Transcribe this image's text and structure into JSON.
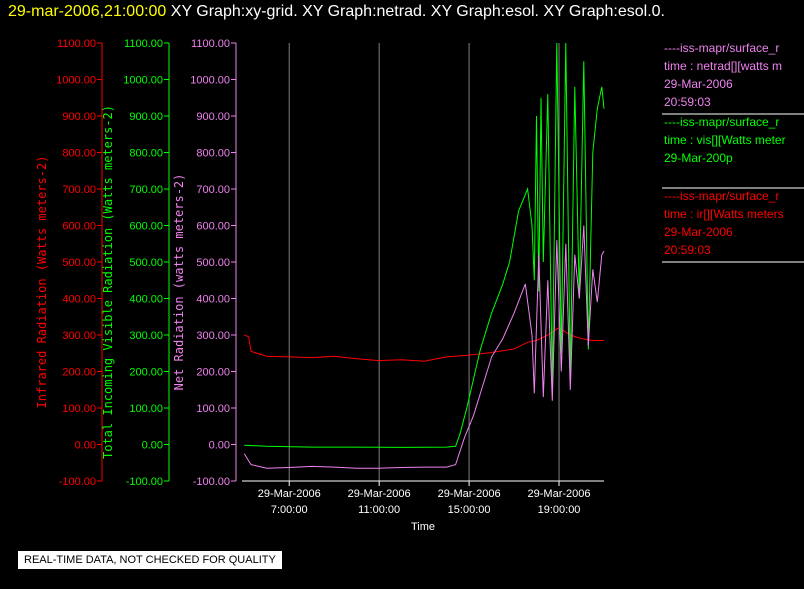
{
  "header": {
    "time": "29-mar-2006,21:00:00",
    "graphs": "XY Graph:xy-grid.  XY Graph:netrad.  XY Graph:esol.  XY Graph:esol.0."
  },
  "footer": {
    "qc_notice": "REAL-TIME DATA, NOT CHECKED FOR QUALITY"
  },
  "colors": {
    "infrared": "#ff0000",
    "visible": "#00ff00",
    "net": "#ee82ee",
    "grid": "#808080",
    "axis": "#ffffff"
  },
  "legend": [
    {
      "line1": "----iss-mapr/surface_r",
      "line2": "time : netrad[][watts m",
      "line3": "29-Mar-2006",
      "line4": "20:59:03",
      "color": "#ee82ee"
    },
    {
      "line1": "----iss-mapr/surface_r",
      "line2": "time : vis[][Watts meter",
      "line3": "29-Mar-200p",
      "line4": "",
      "color": "#00ff00"
    },
    {
      "line1": "----iss-mapr/surface_r",
      "line2": "time : ir[][Watts meters",
      "line3": "29-Mar-2006",
      "line4": "20:59:03",
      "color": "#ff0000"
    }
  ],
  "chart_data": {
    "type": "line",
    "title": "",
    "xlabel": "Time",
    "x_ticks": [
      {
        "top": "29-Mar-2006",
        "bottom": "7:00:00",
        "hour": 7
      },
      {
        "top": "29-Mar-2006",
        "bottom": "11:00:00",
        "hour": 11
      },
      {
        "top": "29-Mar-2006",
        "bottom": "15:00:00",
        "hour": 15
      },
      {
        "top": "29-Mar-2006",
        "bottom": "19:00:00",
        "hour": 19
      }
    ],
    "xlim_hours": [
      4.9,
      21.0
    ],
    "y_tick_labels": [
      "-100.00",
      "0.00",
      "100.00",
      "200.00",
      "300.00",
      "400.00",
      "500.00",
      "600.00",
      "700.00",
      "800.00",
      "900.00",
      "1000.00",
      "1100.00"
    ],
    "ylim": [
      -100,
      1100
    ],
    "axes": [
      {
        "label": "Infrared Radiation (Watts meters-2)",
        "color": "#ff0000"
      },
      {
        "label": "Total Incoming Visible Radiation (Watts meters-2)",
        "color": "#00ff00"
      },
      {
        "label": "Net Radiation (watts meters-2)",
        "color": "#ee82ee"
      }
    ],
    "series": [
      {
        "name": "ir",
        "color": "#ff0000",
        "points": [
          [
            5.0,
            300
          ],
          [
            5.2,
            295
          ],
          [
            5.3,
            255
          ],
          [
            6,
            242
          ],
          [
            7,
            240
          ],
          [
            8,
            238
          ],
          [
            9,
            242
          ],
          [
            10,
            235
          ],
          [
            11,
            230
          ],
          [
            12,
            232
          ],
          [
            13,
            228
          ],
          [
            14,
            240
          ],
          [
            15,
            245
          ],
          [
            16,
            252
          ],
          [
            17,
            262
          ],
          [
            17.6,
            280
          ],
          [
            18,
            285
          ],
          [
            18.5,
            300
          ],
          [
            19,
            320
          ],
          [
            19.5,
            300
          ],
          [
            20,
            290
          ],
          [
            20.5,
            285
          ],
          [
            21.0,
            285
          ]
        ]
      },
      {
        "name": "vis",
        "color": "#00ff00",
        "points": [
          [
            5.0,
            -2
          ],
          [
            6,
            -5
          ],
          [
            8,
            -7
          ],
          [
            10,
            -7
          ],
          [
            12,
            -8
          ],
          [
            14,
            -7
          ],
          [
            14.4,
            -5
          ],
          [
            14.6,
            30
          ],
          [
            14.9,
            100
          ],
          [
            15.5,
            260
          ],
          [
            16,
            360
          ],
          [
            16.5,
            440
          ],
          [
            16.8,
            500
          ],
          [
            17.2,
            640
          ],
          [
            17.6,
            700
          ],
          [
            17.8,
            600
          ],
          [
            17.9,
            450
          ],
          [
            18.0,
            900
          ],
          [
            18.1,
            420
          ],
          [
            18.2,
            950
          ],
          [
            18.3,
            500
          ],
          [
            18.5,
            960
          ],
          [
            18.7,
            160
          ],
          [
            18.9,
            1100
          ],
          [
            19.1,
            250
          ],
          [
            19.3,
            1100
          ],
          [
            19.5,
            180
          ],
          [
            19.7,
            980
          ],
          [
            19.9,
            400
          ],
          [
            20.1,
            1050
          ],
          [
            20.3,
            260
          ],
          [
            20.5,
            800
          ],
          [
            20.7,
            920
          ],
          [
            20.9,
            980
          ],
          [
            21.0,
            920
          ]
        ]
      },
      {
        "name": "netrad",
        "color": "#ee82ee",
        "points": [
          [
            5.0,
            -25
          ],
          [
            5.3,
            -55
          ],
          [
            6,
            -65
          ],
          [
            7,
            -63
          ],
          [
            8,
            -60
          ],
          [
            9,
            -62
          ],
          [
            10,
            -65
          ],
          [
            11,
            -65
          ],
          [
            12,
            -63
          ],
          [
            13,
            -62
          ],
          [
            14,
            -62
          ],
          [
            14.4,
            -55
          ],
          [
            14.8,
            20
          ],
          [
            15.2,
            80
          ],
          [
            15.6,
            160
          ],
          [
            16,
            240
          ],
          [
            16.5,
            290
          ],
          [
            17.0,
            360
          ],
          [
            17.5,
            440
          ],
          [
            17.8,
            300
          ],
          [
            17.9,
            140
          ],
          [
            18.1,
            520
          ],
          [
            18.3,
            130
          ],
          [
            18.5,
            450
          ],
          [
            18.7,
            120
          ],
          [
            18.9,
            560
          ],
          [
            19.1,
            200
          ],
          [
            19.3,
            550
          ],
          [
            19.5,
            150
          ],
          [
            19.7,
            520
          ],
          [
            19.9,
            400
          ],
          [
            20.1,
            600
          ],
          [
            20.3,
            270
          ],
          [
            20.5,
            480
          ],
          [
            20.7,
            390
          ],
          [
            20.9,
            520
          ],
          [
            21.0,
            530
          ]
        ]
      }
    ]
  }
}
